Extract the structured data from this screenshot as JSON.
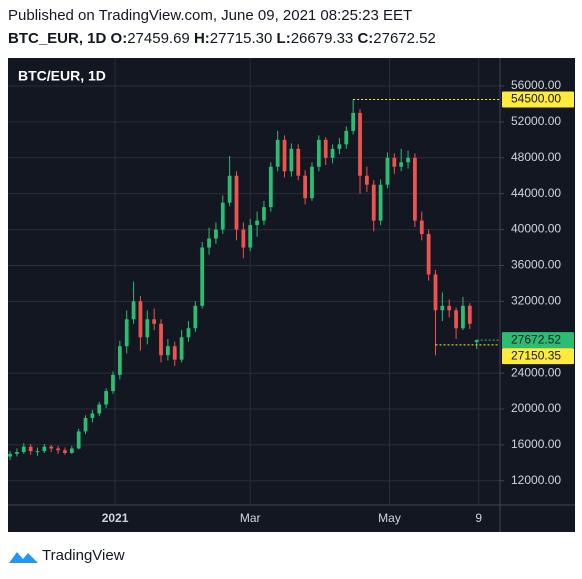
{
  "header": {
    "published": "Published on TradingView.com, June 09, 2021 08:25:23 EET",
    "symbol": "BTC_EUR, 1D",
    "ohlc": [
      {
        "label": "O:",
        "value": "27459.69"
      },
      {
        "label": "H:",
        "value": "27715.30"
      },
      {
        "label": "L:",
        "value": "26679.33"
      },
      {
        "label": "C:",
        "value": "27672.52"
      }
    ]
  },
  "chart_data": {
    "type": "candlestick",
    "title": "BTC/EUR, 1D",
    "up_color": "#2bbd71",
    "down_color": "#ef5350",
    "grid": true,
    "xlim": [
      -0.3,
      71.4
    ],
    "ylim": [
      9300,
      58900
    ],
    "xticks": [
      {
        "value": 15.3,
        "label": "2021"
      },
      {
        "value": 35,
        "label": "Mar"
      },
      {
        "value": 55.3,
        "label": "May"
      },
      {
        "value": 68.3,
        "label": "9"
      }
    ],
    "yticks": [
      {
        "value": 12000,
        "label": "12000.00"
      },
      {
        "value": 16000,
        "label": "16000.00"
      },
      {
        "value": 20000,
        "label": "20000.00"
      },
      {
        "value": 24000,
        "label": "24000.00"
      },
      {
        "value": 32000,
        "label": "32000.00"
      },
      {
        "value": 36000,
        "label": "36000.00"
      },
      {
        "value": 40000,
        "label": "40000.00"
      },
      {
        "value": 44000,
        "label": "44000.00"
      },
      {
        "value": 48000,
        "label": "48000.00"
      },
      {
        "value": 52000,
        "label": "52000.00"
      },
      {
        "value": 56000,
        "label": "56000.00"
      }
    ],
    "price_lines": [
      {
        "value": 54500,
        "label": "54500.00",
        "color": "#ffeb3b"
      },
      {
        "value": 27672.52,
        "label": "27672.52",
        "color": "#2bbd71"
      },
      {
        "value": 27150.35,
        "label": "27150.35",
        "color": "#ffeb3b"
      }
    ],
    "candles": [
      [
        14700,
        15300,
        14300,
        15000
      ],
      [
        15000,
        15600,
        14700,
        15200
      ],
      [
        15200,
        16200,
        15000,
        15800
      ],
      [
        15800,
        16100,
        14900,
        15300
      ],
      [
        15300,
        15700,
        14800,
        15300
      ],
      [
        15300,
        16100,
        15100,
        15800
      ],
      [
        15800,
        16000,
        15200,
        15600
      ],
      [
        15600,
        15900,
        15000,
        15400
      ],
      [
        15400,
        15700,
        14900,
        15100
      ],
      [
        15100,
        15900,
        15000,
        15600
      ],
      [
        15600,
        17800,
        15500,
        17500
      ],
      [
        17500,
        19300,
        17200,
        19000
      ],
      [
        19000,
        19900,
        18500,
        19500
      ],
      [
        19500,
        20800,
        19200,
        20500
      ],
      [
        20500,
        22300,
        20100,
        22000
      ],
      [
        22000,
        24200,
        21700,
        23800
      ],
      [
        23800,
        27600,
        23300,
        27000
      ],
      [
        27000,
        31000,
        26200,
        30000
      ],
      [
        30000,
        34200,
        29500,
        32000
      ],
      [
        32000,
        32600,
        26500,
        28000
      ],
      [
        28000,
        31000,
        27200,
        30000
      ],
      [
        30000,
        31200,
        28800,
        29500
      ],
      [
        29500,
        30000,
        25200,
        26000
      ],
      [
        26000,
        27800,
        25400,
        27000
      ],
      [
        27000,
        27500,
        24800,
        25500
      ],
      [
        25500,
        28800,
        25200,
        28000
      ],
      [
        28000,
        29800,
        27500,
        29000
      ],
      [
        29000,
        32000,
        28600,
        31500
      ],
      [
        31500,
        38600,
        31200,
        38000
      ],
      [
        38000,
        40200,
        37200,
        39000
      ],
      [
        39000,
        40800,
        38400,
        40000
      ],
      [
        40000,
        43800,
        39500,
        43000
      ],
      [
        43000,
        48200,
        42600,
        46000
      ],
      [
        46000,
        46500,
        38800,
        40000
      ],
      [
        40000,
        40800,
        36800,
        38000
      ],
      [
        38000,
        41200,
        37600,
        40500
      ],
      [
        40500,
        42000,
        39200,
        41000
      ],
      [
        41000,
        43200,
        40500,
        42500
      ],
      [
        42500,
        47500,
        42000,
        47000
      ],
      [
        47000,
        51000,
        46500,
        50000
      ],
      [
        50000,
        50500,
        45800,
        46500
      ],
      [
        46500,
        49600,
        45900,
        49000
      ],
      [
        49000,
        49500,
        45500,
        46000
      ],
      [
        46000,
        46600,
        42800,
        43500
      ],
      [
        43500,
        47500,
        43200,
        47000
      ],
      [
        47000,
        50500,
        46500,
        50000
      ],
      [
        50000,
        50300,
        47200,
        48000
      ],
      [
        48000,
        49500,
        47400,
        49000
      ],
      [
        49000,
        50200,
        48400,
        49500
      ],
      [
        49500,
        51500,
        49000,
        51000
      ],
      [
        51000,
        54500,
        50600,
        53000
      ],
      [
        53000,
        53400,
        44000,
        46000
      ],
      [
        46000,
        47000,
        44200,
        45000
      ],
      [
        45000,
        45500,
        39800,
        41000
      ],
      [
        41000,
        45600,
        40500,
        45000
      ],
      [
        45000,
        48600,
        44600,
        48000
      ],
      [
        48000,
        48500,
        46200,
        47000
      ],
      [
        47000,
        49000,
        46500,
        47500
      ],
      [
        47500,
        48800,
        46800,
        48000
      ],
      [
        48000,
        48500,
        40300,
        41000
      ],
      [
        41000,
        42000,
        38800,
        39500
      ],
      [
        39500,
        40000,
        34300,
        35000
      ],
      [
        35000,
        35500,
        26000,
        31000
      ],
      [
        31000,
        33000,
        29800,
        31500
      ],
      [
        31500,
        32200,
        30200,
        31000
      ],
      [
        31000,
        31300,
        27800,
        29000
      ],
      [
        29000,
        32500,
        28800,
        31500
      ],
      [
        31500,
        31800,
        28900,
        29500
      ],
      [
        27459.69,
        27715.3,
        26679.33,
        27672.52
      ]
    ]
  },
  "footer": {
    "brand": "TradingView"
  }
}
